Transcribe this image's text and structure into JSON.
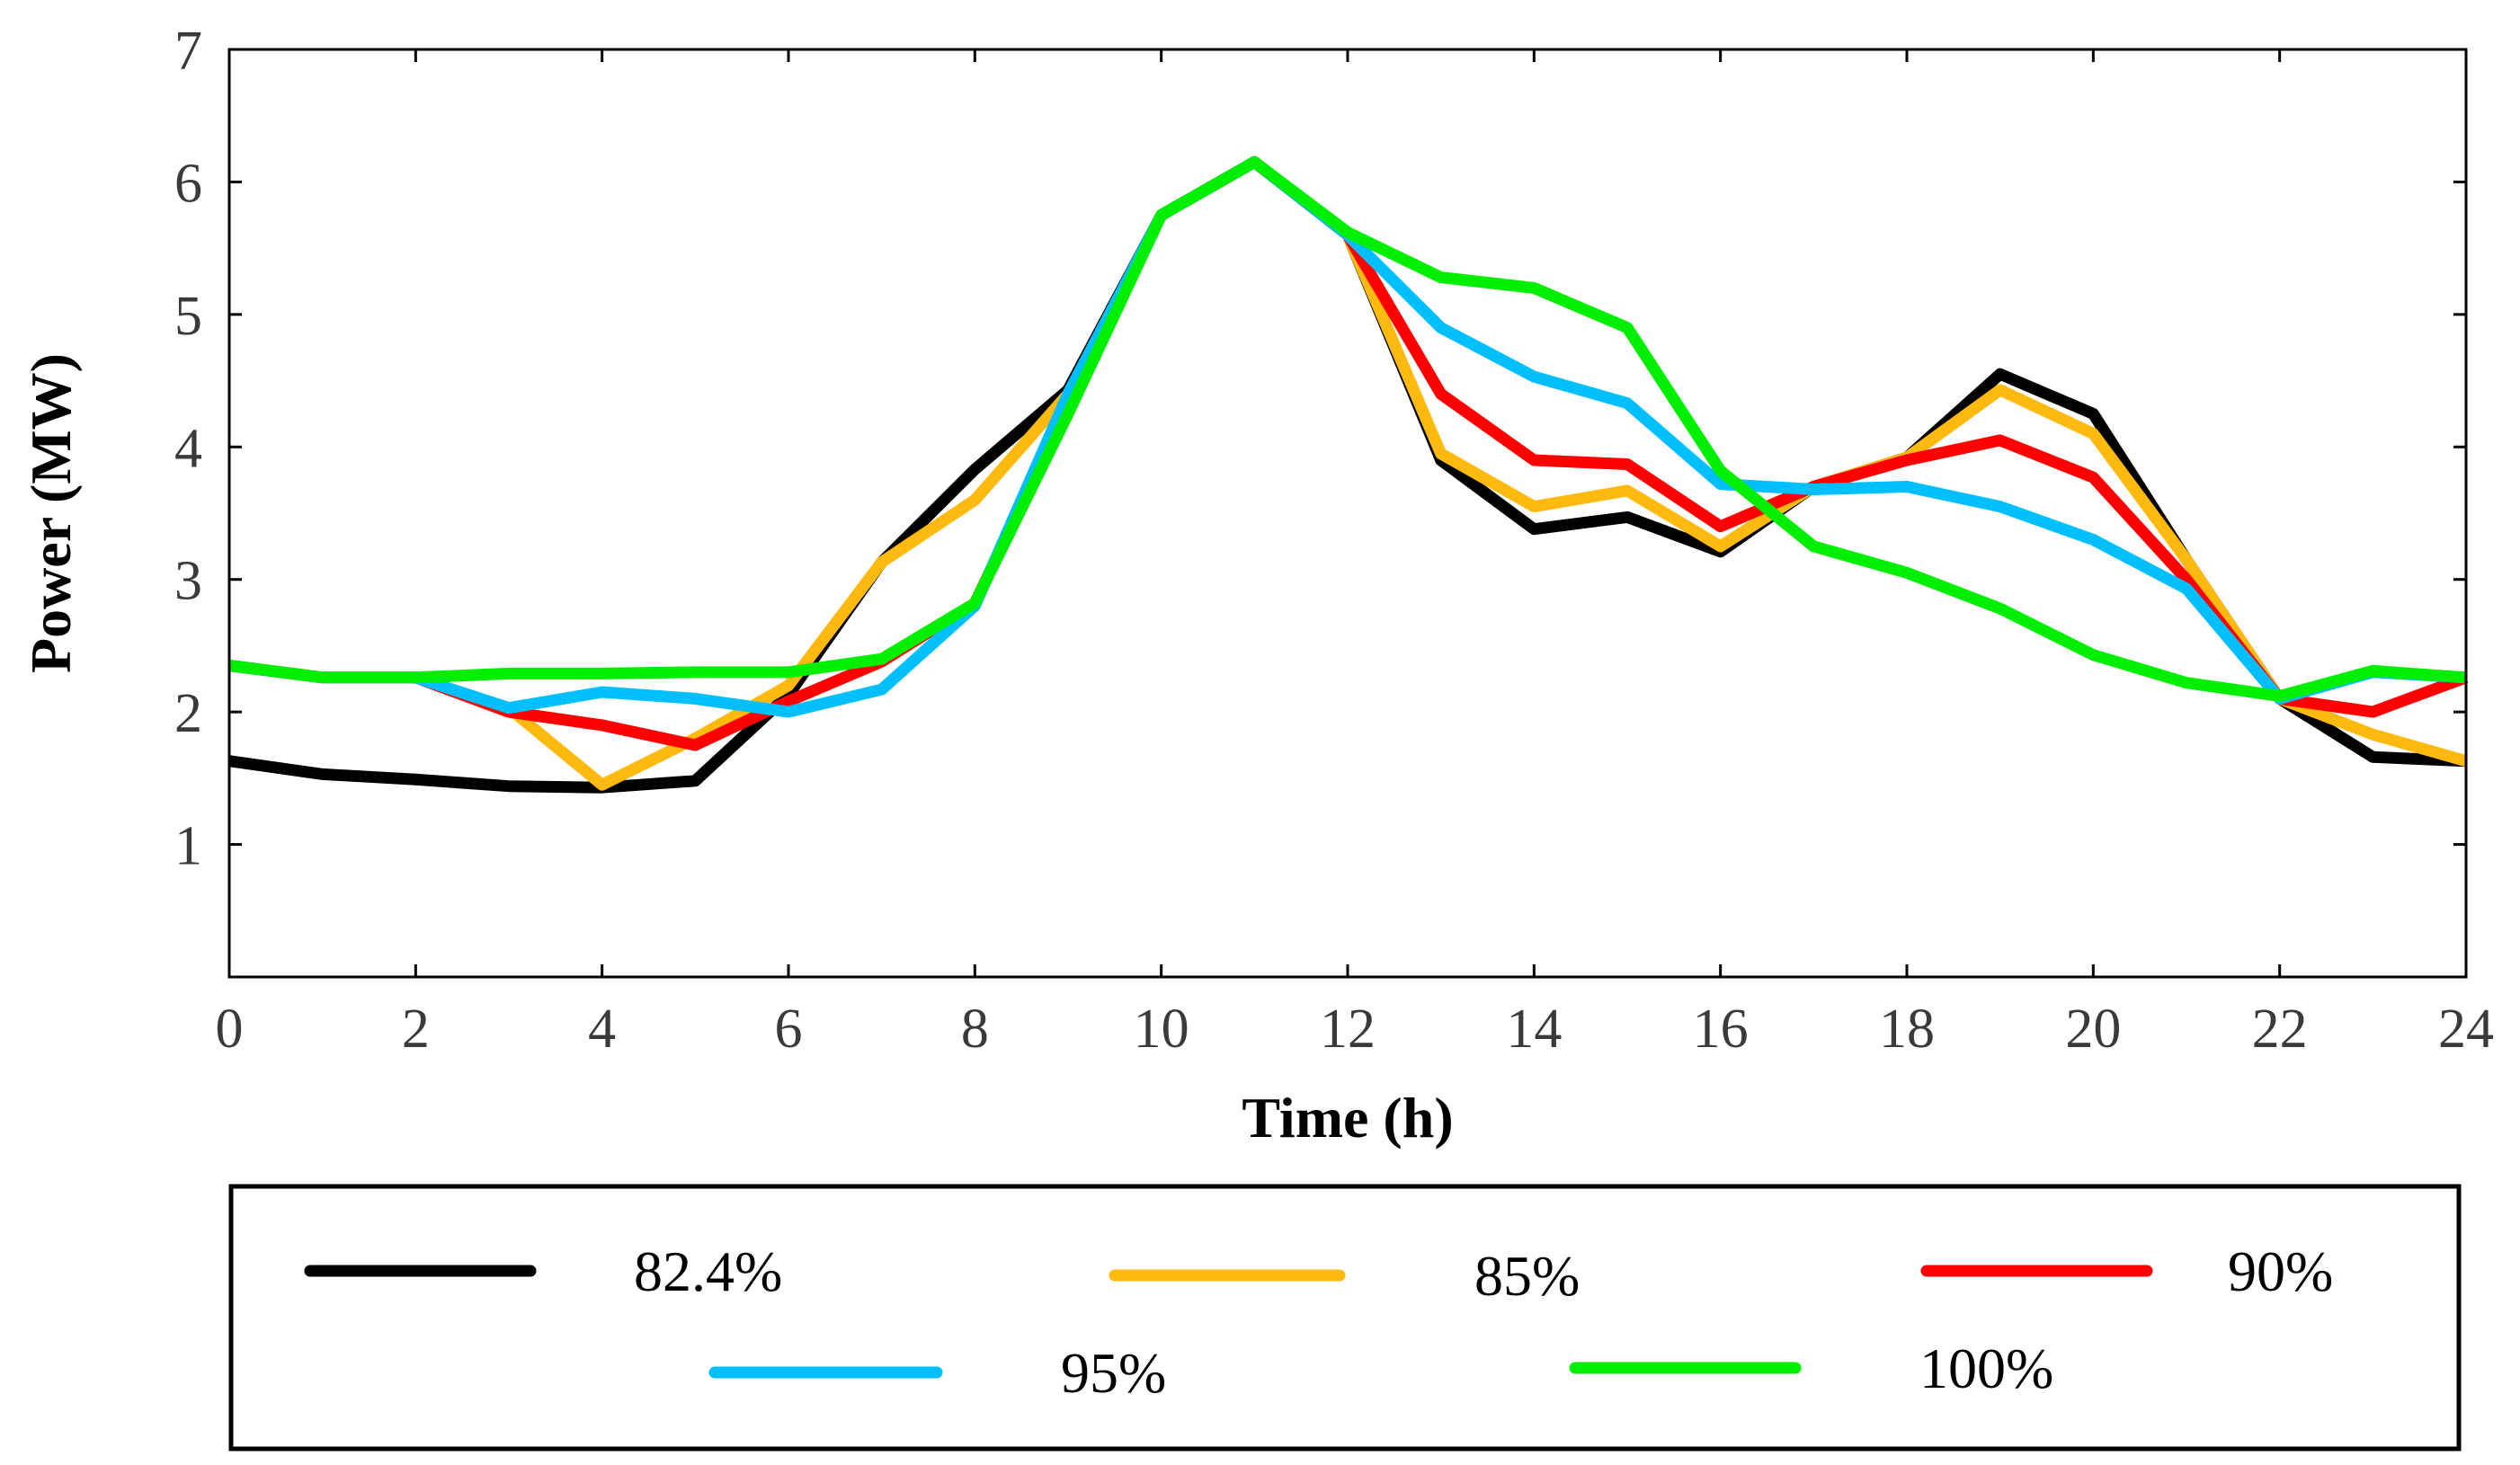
{
  "chart_data": {
    "type": "line",
    "title": "",
    "xlabel": "Time (h)",
    "ylabel": "Power (MW)",
    "xlim": [
      0,
      24
    ],
    "ylim": [
      0,
      7
    ],
    "xticks": [
      0,
      2,
      4,
      6,
      8,
      10,
      12,
      14,
      16,
      18,
      20,
      22,
      24
    ],
    "yticks": [
      1,
      2,
      3,
      4,
      5,
      6,
      7
    ],
    "grid": false,
    "legend_position": "below",
    "x": [
      0,
      1,
      2,
      3,
      4,
      5,
      6,
      7,
      8,
      9,
      10,
      11,
      12,
      13,
      14,
      15,
      16,
      17,
      18,
      19,
      20,
      21,
      22,
      23,
      24
    ],
    "series": [
      {
        "name": "82.4%",
        "color": "#000000",
        "values": [
          1.63,
          1.53,
          1.49,
          1.44,
          1.43,
          1.48,
          2.13,
          3.13,
          3.83,
          4.43,
          5.75,
          6.15,
          5.6,
          3.9,
          3.38,
          3.47,
          3.21,
          3.7,
          3.92,
          4.55,
          4.25,
          3.15,
          2.1,
          1.66,
          1.63
        ]
      },
      {
        "name": "85%",
        "color": "#FFB90F",
        "values": [
          2.35,
          2.26,
          2.26,
          2.03,
          1.45,
          1.8,
          2.2,
          3.13,
          3.6,
          4.4,
          5.75,
          6.15,
          5.6,
          3.95,
          3.55,
          3.67,
          3.25,
          3.7,
          3.92,
          4.43,
          4.1,
          3.15,
          2.1,
          1.83,
          1.63
        ]
      },
      {
        "name": "90%",
        "color": "#FF0000",
        "values": [
          2.35,
          2.26,
          2.26,
          2.0,
          1.9,
          1.75,
          2.08,
          2.38,
          2.82,
          4.3,
          5.75,
          6.15,
          5.6,
          4.4,
          3.9,
          3.87,
          3.4,
          3.7,
          3.9,
          4.05,
          3.77,
          3.0,
          2.1,
          2.0,
          2.26
        ]
      },
      {
        "name": "95%",
        "color": "#00BFFF",
        "values": [
          2.35,
          2.26,
          2.26,
          2.03,
          2.15,
          2.1,
          2.0,
          2.17,
          2.8,
          4.4,
          5.75,
          6.15,
          5.6,
          4.9,
          4.53,
          4.33,
          3.72,
          3.68,
          3.7,
          3.55,
          3.3,
          2.93,
          2.1,
          2.3,
          2.26
        ]
      },
      {
        "name": "100%",
        "color": "#00EE00",
        "values": [
          2.35,
          2.26,
          2.26,
          2.29,
          2.29,
          2.3,
          2.3,
          2.4,
          2.82,
          4.25,
          5.75,
          6.15,
          5.62,
          5.28,
          5.2,
          4.9,
          3.82,
          3.25,
          3.05,
          2.78,
          2.43,
          2.22,
          2.12,
          2.31,
          2.26
        ]
      }
    ]
  }
}
